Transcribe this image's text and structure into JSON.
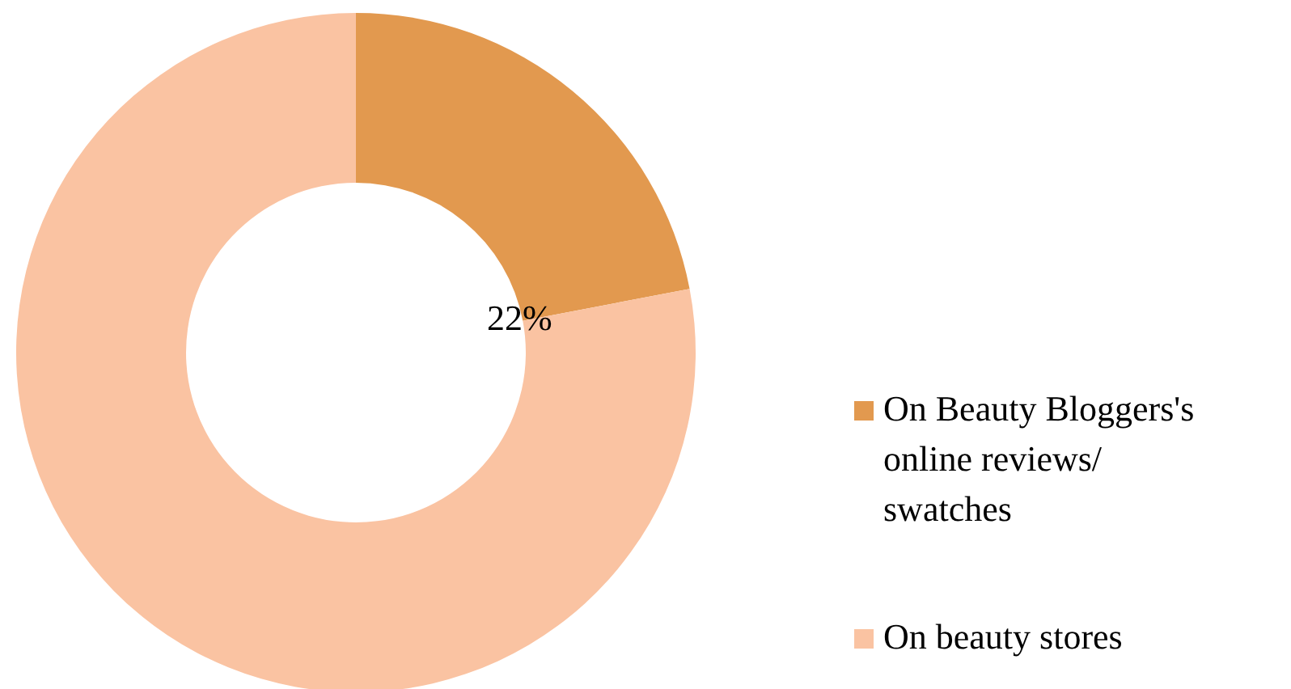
{
  "chart_data": {
    "type": "donut",
    "categories": [
      "On Beauty Bloggers's online reviews/ swatches",
      "On beauty stores"
    ],
    "values": [
      22,
      78
    ],
    "colors": [
      "#e2994f",
      "#fac3a2"
    ],
    "value_labels": [
      "22%",
      null
    ],
    "legend": "right"
  }
}
